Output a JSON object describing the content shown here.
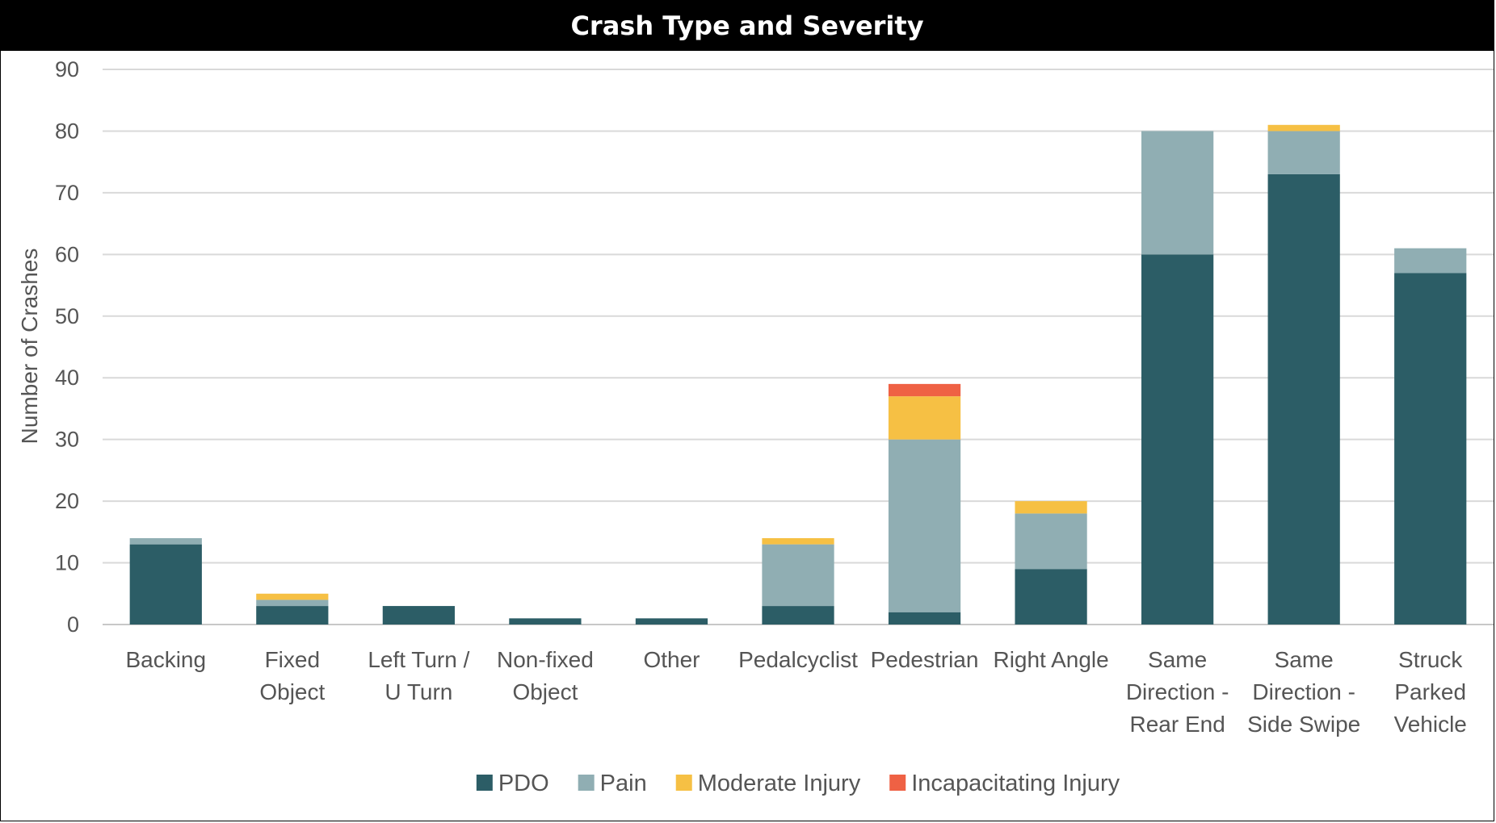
{
  "chart_data": {
    "type": "bar",
    "stacked": true,
    "title": "Crash Type and Severity",
    "ylabel": "Number of Crashes",
    "xlabel": "",
    "ylim": [
      0,
      90
    ],
    "yticks": [
      0,
      10,
      20,
      30,
      40,
      50,
      60,
      70,
      80,
      90
    ],
    "grid": true,
    "legend_position": "bottom",
    "categories": [
      [
        "Backing"
      ],
      [
        "Fixed",
        "Object"
      ],
      [
        "Left Turn /",
        "U Turn"
      ],
      [
        "Non-fixed",
        "Object"
      ],
      [
        "Other"
      ],
      [
        "Pedalcyclist"
      ],
      [
        "Pedestrian"
      ],
      [
        "Right Angle"
      ],
      [
        "Same",
        "Direction -",
        "Rear End"
      ],
      [
        "Same",
        "Direction -",
        "Side Swipe"
      ],
      [
        "Struck",
        "Parked",
        "Vehicle"
      ]
    ],
    "series": [
      {
        "name": "PDO",
        "color": "#2c5d66",
        "values": [
          13,
          3,
          3,
          1,
          1,
          3,
          2,
          9,
          60,
          73,
          57
        ]
      },
      {
        "name": "Pain",
        "color": "#90aeb3",
        "values": [
          1,
          1,
          0,
          0,
          0,
          10,
          28,
          9,
          20,
          7,
          4
        ]
      },
      {
        "name": "Moderate Injury",
        "color": "#f6c044",
        "values": [
          0,
          1,
          0,
          0,
          0,
          1,
          7,
          2,
          0,
          1,
          0
        ]
      },
      {
        "name": "Incapacitating Injury",
        "color": "#ef6144",
        "values": [
          0,
          0,
          0,
          0,
          0,
          0,
          2,
          0,
          0,
          0,
          0
        ]
      }
    ]
  }
}
